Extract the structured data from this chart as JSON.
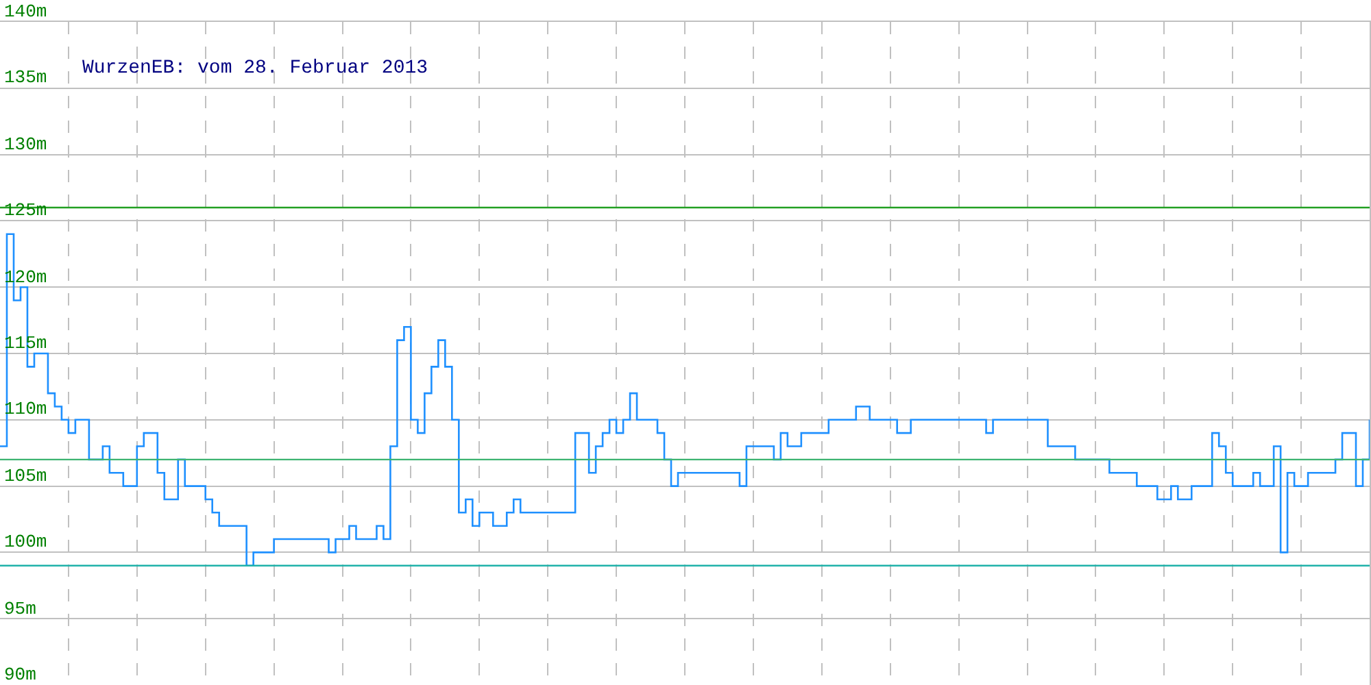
{
  "chart_data": {
    "type": "step",
    "title": "WurzenEB: vom 28. Februar 2013",
    "categories": [
      null,
      null,
      null,
      null,
      null,
      null,
      null,
      null,
      null,
      null,
      null,
      null,
      null,
      null,
      null,
      null,
      null,
      null,
      null,
      null,
      null,
      null,
      null,
      null,
      null,
      null,
      null,
      null,
      null,
      null,
      null,
      null,
      null,
      null,
      null,
      null,
      null,
      null,
      null,
      null,
      null,
      null,
      null,
      null,
      null,
      null,
      null,
      null,
      null,
      null,
      null,
      null,
      null,
      null,
      null,
      null,
      null,
      null,
      null,
      null,
      null,
      null,
      null,
      null,
      null,
      null,
      null,
      null,
      null,
      null,
      null,
      null,
      null,
      null,
      null,
      null,
      null,
      null,
      null,
      null,
      null,
      null,
      null,
      null,
      null,
      null,
      null,
      null,
      null,
      null,
      null,
      null,
      null,
      null,
      null,
      null,
      null,
      null,
      null,
      null,
      null,
      null,
      null,
      null,
      null,
      null,
      null,
      null,
      null,
      null,
      null,
      null,
      null,
      null,
      null,
      null,
      null,
      null,
      null,
      null,
      null,
      null,
      null,
      null,
      null,
      null,
      null,
      null,
      null,
      null,
      null,
      null,
      null,
      null,
      null,
      null,
      null,
      null,
      null,
      null,
      null,
      null,
      null,
      null,
      null,
      null,
      null,
      null,
      null,
      null,
      null,
      null,
      null,
      null,
      null,
      null,
      null,
      null,
      null,
      null,
      null,
      null,
      null,
      null,
      null,
      null,
      null,
      null,
      null,
      null,
      null,
      null,
      null,
      null,
      null,
      null,
      null,
      null,
      null,
      null,
      null,
      null,
      null,
      null,
      null,
      null,
      null,
      null,
      null,
      null,
      null,
      null,
      null,
      null,
      null,
      null,
      null,
      null,
      null,
      null,
      null
    ],
    "series": [
      {
        "color": "#1e90ff",
        "values": [
          108,
          124,
          119,
          120,
          114,
          115,
          115,
          112,
          111,
          110,
          109,
          110,
          110,
          107,
          107,
          108,
          106,
          106,
          105,
          105,
          108,
          109,
          109,
          106,
          104,
          104,
          107,
          105,
          105,
          105,
          104,
          103,
          102,
          102,
          102,
          102,
          99,
          100,
          100,
          100,
          101,
          101,
          101,
          101,
          101,
          101,
          101,
          101,
          100,
          101,
          101,
          102,
          101,
          101,
          101,
          102,
          101,
          108,
          116,
          117,
          110,
          109,
          112,
          114,
          116,
          114,
          110,
          103,
          104,
          102,
          103,
          103,
          102,
          102,
          103,
          104,
          103,
          103,
          103,
          103,
          103,
          103,
          103,
          103,
          109,
          109,
          106,
          108,
          109,
          110,
          109,
          110,
          112,
          110,
          110,
          110,
          109,
          107,
          105,
          106,
          106,
          106,
          106,
          106,
          106,
          106,
          106,
          106,
          105,
          108,
          108,
          108,
          108,
          107,
          109,
          108,
          108,
          109,
          109,
          109,
          109,
          110,
          110,
          110,
          110,
          111,
          111,
          110,
          110,
          110,
          110,
          109,
          109,
          110,
          110,
          110,
          110,
          110,
          110,
          110,
          110,
          110,
          110,
          110,
          109,
          110,
          110,
          110,
          110,
          110,
          110,
          110,
          110,
          108,
          108,
          108,
          108,
          107,
          107,
          107,
          107,
          107,
          106,
          106,
          106,
          106,
          105,
          105,
          105,
          104,
          104,
          105,
          104,
          104,
          105,
          105,
          105,
          109,
          108,
          106,
          105,
          105,
          105,
          106,
          105,
          105,
          108,
          100,
          106,
          105,
          105,
          106,
          106,
          106,
          106,
          107,
          109,
          109,
          105,
          107,
          110
        ]
      }
    ],
    "ylim": [
      90,
      140
    ],
    "yticks": [
      {
        "value": 90,
        "label": "90m"
      },
      {
        "value": 95,
        "label": "95m"
      },
      {
        "value": 100,
        "label": "100m"
      },
      {
        "value": 105,
        "label": "105m"
      },
      {
        "value": 110,
        "label": "110m"
      },
      {
        "value": 115,
        "label": "115m"
      },
      {
        "value": 120,
        "label": "120m"
      },
      {
        "value": 125,
        "label": "125m"
      },
      {
        "value": 130,
        "label": "130m"
      },
      {
        "value": 135,
        "label": "135m"
      },
      {
        "value": 140,
        "label": "140m"
      }
    ],
    "ref_lines": [
      {
        "axis": "y",
        "value": 126,
        "color": "#22a022"
      },
      {
        "axis": "y",
        "value": 107,
        "color": "#3cb371"
      },
      {
        "axis": "y",
        "value": 99,
        "color": "#20b2aa"
      }
    ],
    "grid": true,
    "tick_labels": "y",
    "line_style": "solid",
    "marker": "none"
  }
}
